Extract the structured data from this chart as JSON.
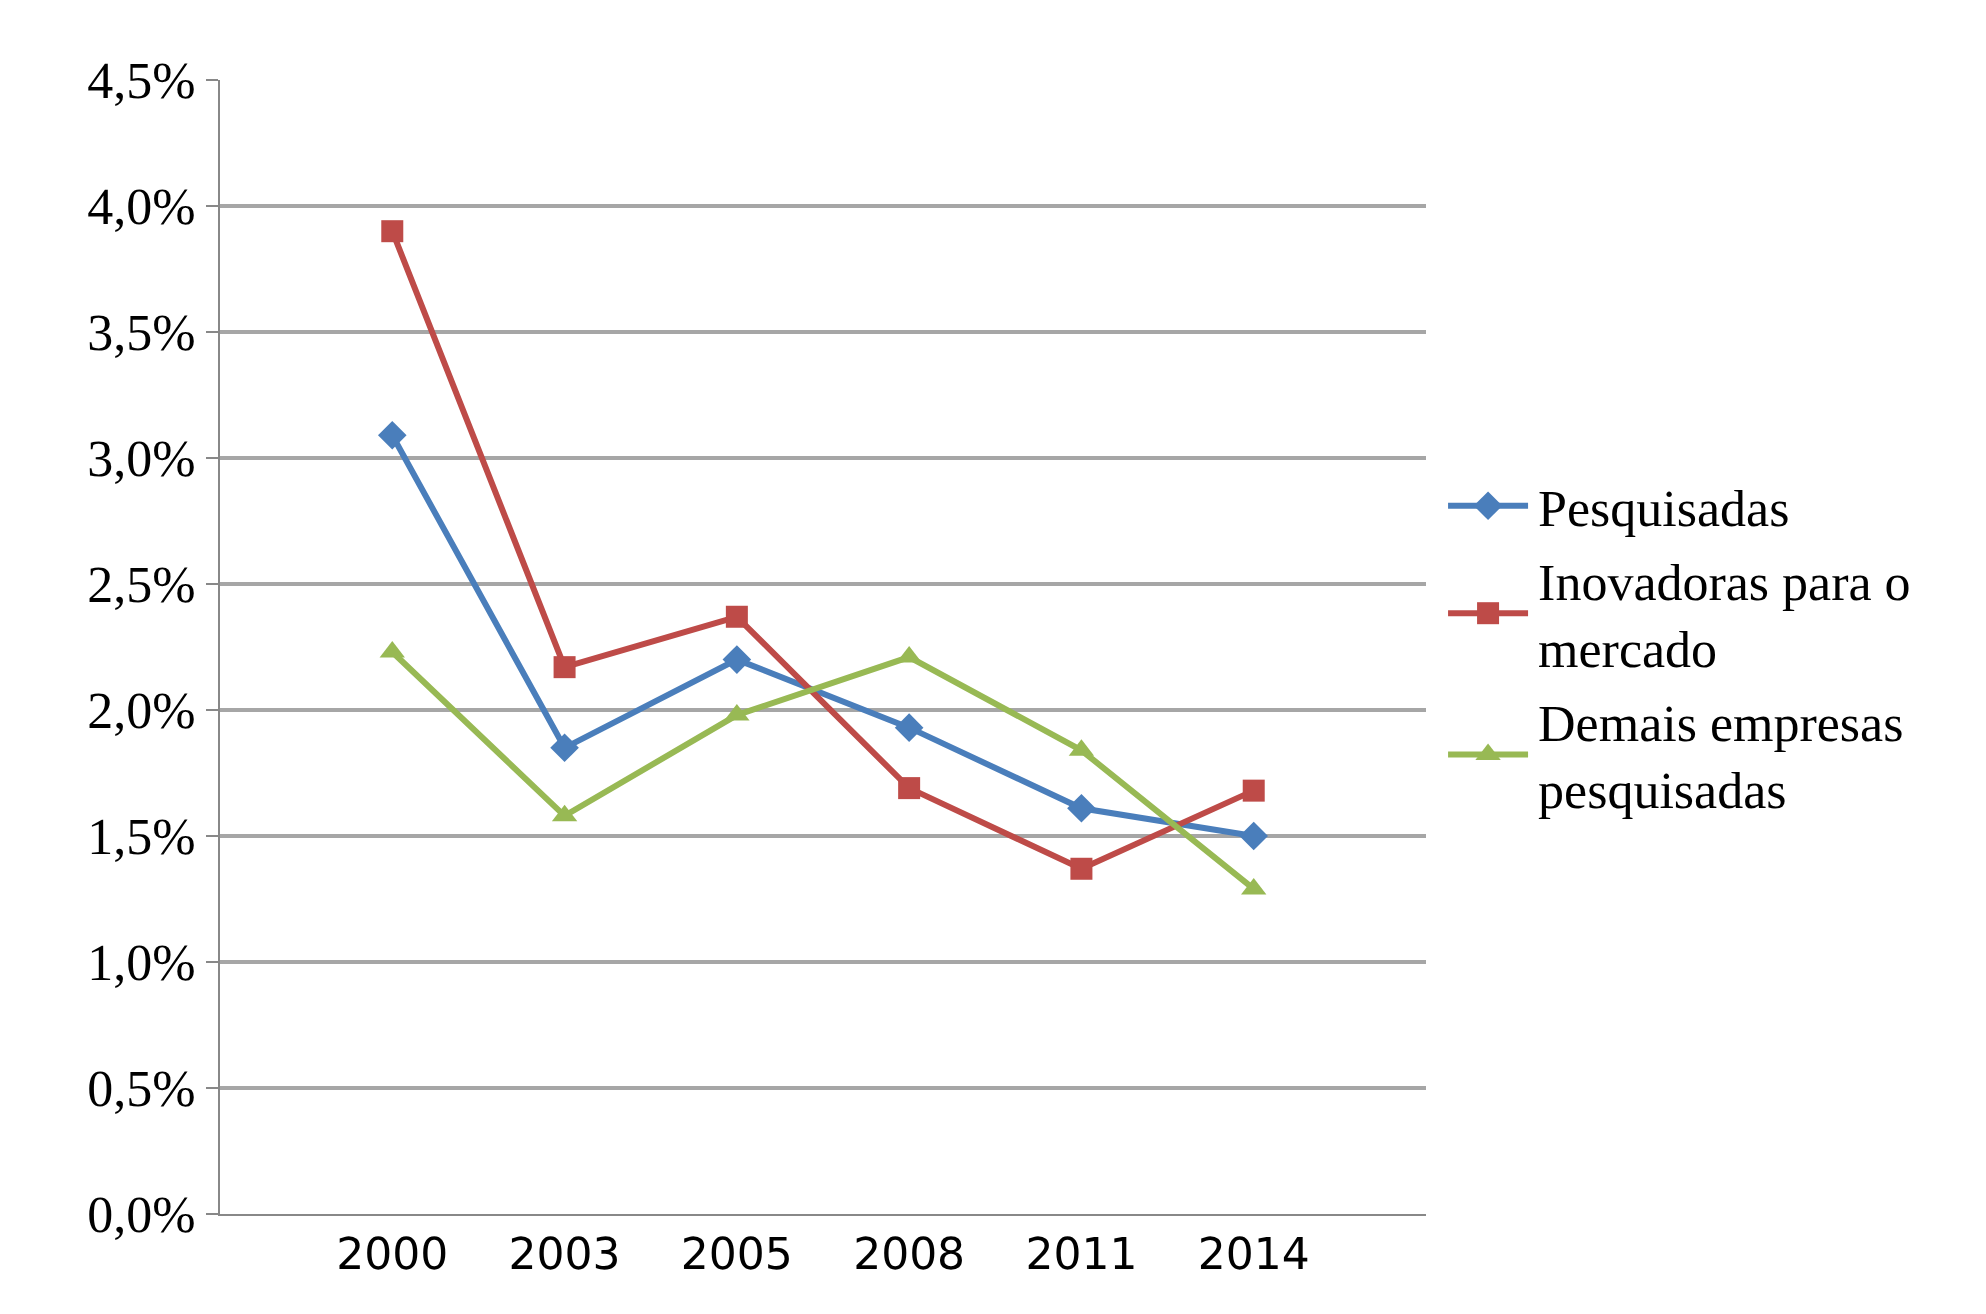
{
  "chart_data": {
    "type": "line",
    "categories": [
      "2000",
      "2003",
      "2005",
      "2008",
      "2011",
      "2014"
    ],
    "series": [
      {
        "name": "Pesquisadas",
        "color": "#4a7ebb",
        "marker": "diamond",
        "values": [
          3.09,
          1.85,
          2.2,
          1.93,
          1.61,
          1.5
        ]
      },
      {
        "name": "Inovadoras para o mercado",
        "color": "#be4b48",
        "marker": "square",
        "values": [
          3.9,
          2.17,
          2.37,
          1.69,
          1.37,
          1.68
        ]
      },
      {
        "name": "Demais empresas pesquisadas",
        "color": "#98b954",
        "marker": "triangle",
        "values": [
          2.23,
          1.58,
          1.98,
          2.21,
          1.84,
          1.29
        ]
      }
    ],
    "ylim": [
      0,
      4.5
    ],
    "yticks": [
      {
        "value": 0,
        "label": "0,0%"
      },
      {
        "value": 0.5,
        "label": "0,5%"
      },
      {
        "value": 1,
        "label": "1,0%"
      },
      {
        "value": 1.5,
        "label": "1,5%"
      },
      {
        "value": 2,
        "label": "2,0%"
      },
      {
        "value": 2.5,
        "label": "2,5%"
      },
      {
        "value": 3,
        "label": "3,0%"
      },
      {
        "value": 3.5,
        "label": "3,5%"
      },
      {
        "value": 4,
        "label": "4,0%"
      },
      {
        "value": 4.5,
        "label": "4,5%"
      }
    ],
    "grid": "y",
    "legend": "right",
    "line_style": "solid"
  }
}
